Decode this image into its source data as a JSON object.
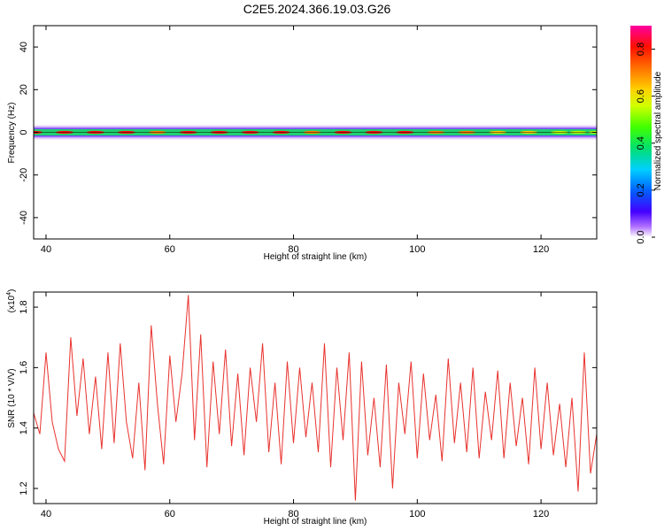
{
  "title": "C2E5.2024.366.19.03.G26",
  "chart_data": [
    {
      "type": "heatmap",
      "xlabel": "Height of straight line (km)",
      "ylabel": "Frequency (Hz)",
      "xlim": [
        38,
        129
      ],
      "ylim": [
        -50,
        50
      ],
      "xticks": [
        40,
        60,
        80,
        100,
        120
      ],
      "yticks": [
        -40,
        -20,
        0,
        20,
        40
      ],
      "colorbar": {
        "label": "Normalized spectral amplitude",
        "range": [
          0.0,
          0.9
        ],
        "ticks": [
          0.0,
          0.2,
          0.4,
          0.6,
          0.8
        ]
      },
      "band": {
        "center_hz": 0,
        "core_halfwidth_hz": 1.5,
        "halo_halfwidth_hz": 4,
        "peak_amplitude": [
          0.9,
          0.85,
          0.9,
          0.85,
          0.8,
          0.9,
          0.85,
          0.9,
          0.85,
          0.8,
          0.9,
          0.85,
          0.9,
          0.8,
          0.75,
          0.7,
          0.65,
          0.6,
          0.55,
          0.6
        ],
        "peak_x_km": [
          38,
          43,
          48,
          53,
          58,
          63,
          68,
          73,
          78,
          83,
          88,
          93,
          98,
          103,
          108,
          113,
          118,
          123,
          126,
          129
        ]
      }
    },
    {
      "type": "line",
      "xlabel": "Height of straight line (km)",
      "ylabel": "SNR (10 * V/V)",
      "scale_note": "(x10",
      "scale_exp": "4",
      "xlim": [
        38,
        129
      ],
      "ylim": [
        1.15,
        1.85
      ],
      "xticks": [
        40,
        60,
        80,
        100,
        120
      ],
      "yticks": [
        1.2,
        1.4,
        1.6,
        1.8
      ],
      "series": [
        {
          "color": "#e8322d",
          "x": [
            38,
            39,
            40,
            41,
            42,
            43,
            44,
            45,
            46,
            47,
            48,
            49,
            50,
            51,
            52,
            53,
            54,
            55,
            56,
            57,
            58,
            59,
            60,
            61,
            62,
            63,
            64,
            65,
            66,
            67,
            68,
            69,
            70,
            71,
            72,
            73,
            74,
            75,
            76,
            77,
            78,
            79,
            80,
            81,
            82,
            83,
            84,
            85,
            86,
            87,
            88,
            89,
            90,
            91,
            92,
            93,
            94,
            95,
            96,
            97,
            98,
            99,
            100,
            101,
            102,
            103,
            104,
            105,
            106,
            107,
            108,
            109,
            110,
            111,
            112,
            113,
            114,
            115,
            116,
            117,
            118,
            119,
            120,
            121,
            122,
            123,
            124,
            125,
            126,
            127,
            128,
            129
          ],
          "y": [
            1.45,
            1.38,
            1.65,
            1.42,
            1.33,
            1.29,
            1.7,
            1.44,
            1.63,
            1.38,
            1.57,
            1.33,
            1.65,
            1.35,
            1.68,
            1.42,
            1.3,
            1.55,
            1.26,
            1.74,
            1.48,
            1.28,
            1.64,
            1.42,
            1.58,
            1.84,
            1.36,
            1.71,
            1.27,
            1.62,
            1.38,
            1.66,
            1.34,
            1.58,
            1.31,
            1.6,
            1.42,
            1.68,
            1.32,
            1.55,
            1.28,
            1.62,
            1.35,
            1.6,
            1.37,
            1.55,
            1.32,
            1.68,
            1.27,
            1.6,
            1.36,
            1.65,
            1.16,
            1.62,
            1.31,
            1.5,
            1.27,
            1.61,
            1.2,
            1.55,
            1.38,
            1.62,
            1.3,
            1.58,
            1.36,
            1.51,
            1.29,
            1.63,
            1.35,
            1.55,
            1.32,
            1.6,
            1.3,
            1.52,
            1.36,
            1.59,
            1.3,
            1.55,
            1.34,
            1.5,
            1.28,
            1.6,
            1.33,
            1.55,
            1.31,
            1.48,
            1.27,
            1.5,
            1.19,
            1.65,
            1.25,
            1.38
          ]
        }
      ]
    }
  ]
}
